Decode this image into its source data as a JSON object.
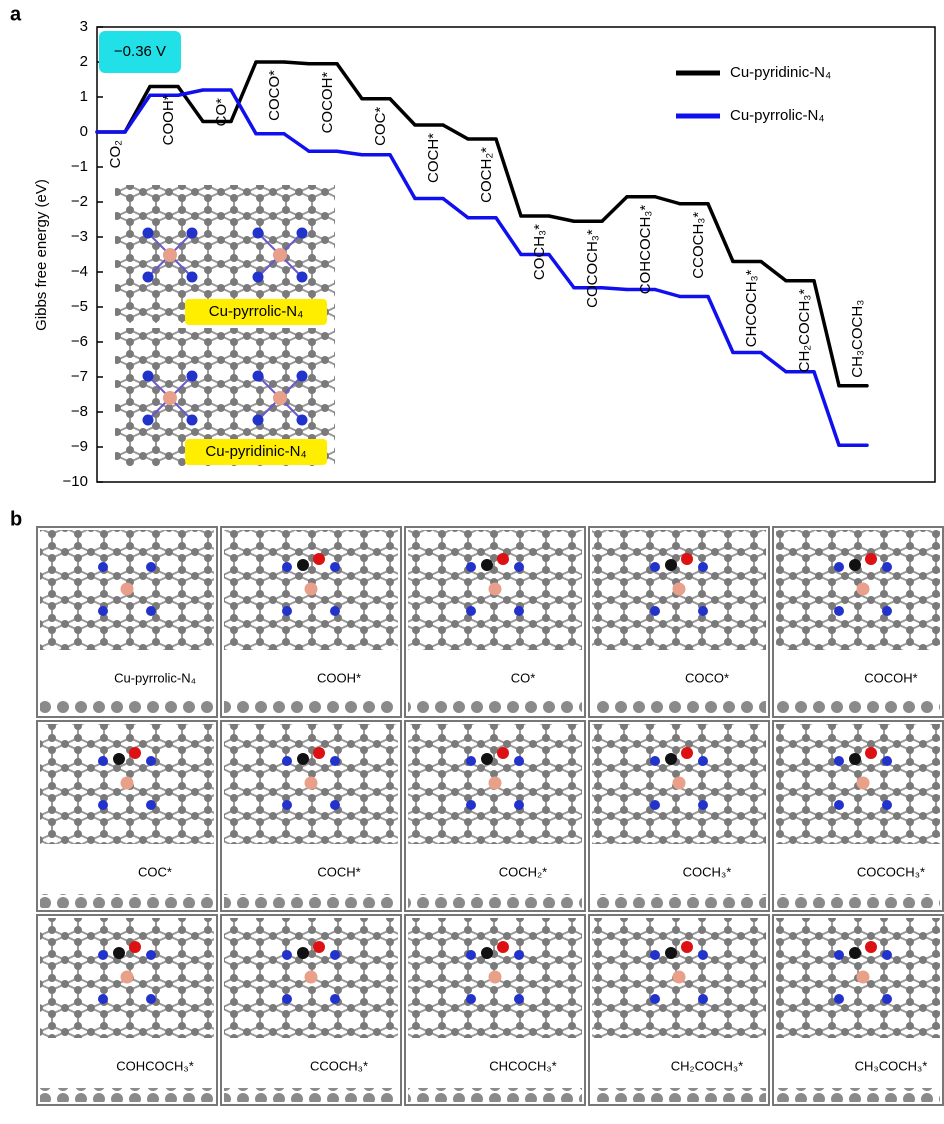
{
  "chart_data": {
    "type": "step",
    "panel": "a",
    "ylabel": "Gibbs free energy (eV)",
    "annotation": "−0.36 V",
    "insets": [
      "Cu-pyrrolic-N₄",
      "Cu-pyridinic-N₄"
    ],
    "categories": [
      "CO₂",
      "COOH*",
      "CO*",
      "COCO*",
      "COCOH*",
      "COC*",
      "COCH*",
      "COCH₂*",
      "COCH₃*",
      "COCOCH₃*",
      "COHCOCH₃*",
      "CCOCH₃*",
      "CHCOCH₃*",
      "CH₂COCH₃*",
      "CH₃COCH₃"
    ],
    "series": [
      {
        "name": "Cu-pyridinic-N₄",
        "color": "#000000",
        "values": [
          0,
          1.3,
          0.3,
          2.0,
          1.95,
          0.95,
          0.2,
          -0.2,
          -2.4,
          -2.55,
          -1.85,
          -2.05,
          -3.7,
          -4.25,
          -7.25
        ]
      },
      {
        "name": "Cu-pyrrolic-N₄",
        "color": "#1010ee",
        "values": [
          0,
          1.05,
          1.2,
          -0.05,
          -0.55,
          -0.65,
          -1.9,
          -2.45,
          -3.5,
          -4.45,
          -4.5,
          -4.7,
          -6.3,
          -6.85,
          -8.95
        ]
      }
    ],
    "ylim": [
      -10,
      3
    ],
    "yticks": [
      {
        "value": -10,
        "label": "−10"
      },
      {
        "value": -9,
        "label": "−9"
      },
      {
        "value": -8,
        "label": "−8"
      },
      {
        "value": -7,
        "label": "−7"
      },
      {
        "value": -6,
        "label": "−6"
      },
      {
        "value": -5,
        "label": "−5"
      },
      {
        "value": -4,
        "label": "−4"
      },
      {
        "value": -3,
        "label": "−3"
      },
      {
        "value": -2,
        "label": "−2"
      },
      {
        "value": -1,
        "label": "−1"
      },
      0,
      1,
      2,
      3
    ],
    "legend": "upper right"
  },
  "panel_b": {
    "panel": "b",
    "labels": [
      "Cu-pyrrolic-N₄",
      "COOH*",
      "CO*",
      "COCO*",
      "COCOH*",
      "COC*",
      "COCH*",
      "COCH₂*",
      "COCH₃*",
      "COCOCH₃*",
      "COHCOCH₃*",
      "CCOCH₃*",
      "CHCOCH₃*",
      "CH₂COCH₃*",
      "CH₃COCH₃*"
    ]
  }
}
